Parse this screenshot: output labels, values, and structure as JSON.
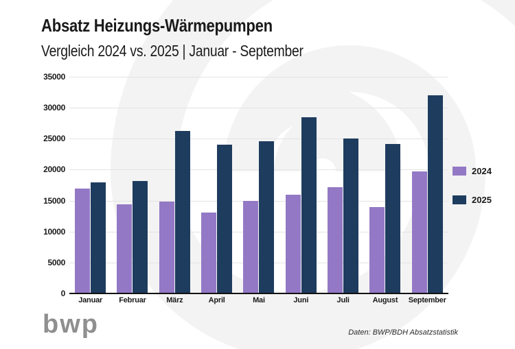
{
  "header": {
    "title": "Absatz Heizungs-Wärmepumpen",
    "subtitle": "Vergleich 2024 vs. 2025 | Januar - September"
  },
  "chart_data": {
    "type": "bar",
    "title": "Absatz Heizungs-Wärmepumpen",
    "subtitle": "Vergleich 2024 vs. 2025 | Januar - September",
    "categories": [
      "Januar",
      "Februar",
      "März",
      "April",
      "Mai",
      "Juni",
      "Juli",
      "August",
      "September"
    ],
    "series": [
      {
        "name": "2024",
        "color": "#9379c5",
        "values": [
          16900,
          14400,
          14800,
          13100,
          15000,
          15900,
          17200,
          14000,
          19700
        ]
      },
      {
        "name": "2025",
        "color": "#1e3c5e",
        "values": [
          18000,
          18200,
          26200,
          24000,
          24600,
          28500,
          25000,
          24200,
          32000
        ]
      }
    ],
    "ylim": [
      0,
      35000
    ],
    "yticks": [
      0,
      5000,
      10000,
      15000,
      20000,
      25000,
      30000,
      35000
    ],
    "grid": "horizontal",
    "legend_position": "right"
  },
  "footer": {
    "logo_text": "bwp",
    "source": "Daten: BWP/BDH Absatzstatistik"
  },
  "colors": {
    "series_2024": "#9379c5",
    "series_2025": "#1e3c5e",
    "text": "#1a1a1a",
    "gridline": "#e3e3e3",
    "axis_line": "#111111",
    "watermark": "#f3f3f3",
    "logo_gray": "#8f8f8f",
    "background": "#ffffff"
  }
}
